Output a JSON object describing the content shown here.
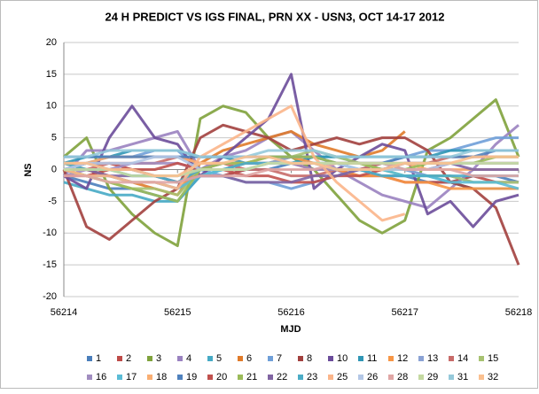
{
  "chart_data": {
    "type": "line",
    "title": "24 H PREDICT VS IGS FINAL, PRN XX - USN3, OCT 14-17 2012",
    "x_label": "MJD",
    "y_label": "NS",
    "x": [
      56214,
      56214.2,
      56214.4,
      56214.6,
      56214.8,
      56215,
      56215.2,
      56215.4,
      56215.6,
      56215.8,
      56216,
      56216.2,
      56216.4,
      56216.6,
      56216.8,
      56217,
      56217.2,
      56217.4,
      56217.6,
      56217.8,
      56218
    ],
    "xlim": [
      56214,
      56218
    ],
    "xticks": [
      56214,
      56215,
      56216,
      56217,
      56218
    ],
    "ylim": [
      -20,
      20
    ],
    "yticks": [
      -20,
      -15,
      -10,
      -5,
      0,
      5,
      10,
      15,
      20
    ],
    "grid": true,
    "series": [
      {
        "name": "1",
        "color": "#4a7ebb",
        "values": [
          -1,
          -2,
          -3,
          -3,
          -4,
          -5,
          -1,
          -1,
          0,
          0,
          1,
          1,
          1,
          0,
          -1,
          -1,
          -2,
          -2,
          -1,
          -1,
          -2
        ]
      },
      {
        "name": "2",
        "color": "#be4b48",
        "values": [
          0,
          1,
          1,
          0,
          -1,
          -2,
          -1,
          -1,
          0,
          1,
          1,
          0,
          0,
          -1,
          -1,
          -2,
          -2,
          -2,
          -1,
          -2,
          -2
        ]
      },
      {
        "name": "3",
        "color": "#7fa23c",
        "values": [
          2,
          5,
          -3,
          -7,
          -10,
          -12,
          8,
          10,
          9,
          5,
          2,
          0,
          -4,
          -8,
          -10,
          -8,
          3,
          5,
          8,
          11,
          2
        ]
      },
      {
        "name": "4",
        "color": "#9a82c0",
        "values": [
          -1,
          3,
          3,
          4,
          5,
          6,
          0,
          2,
          3,
          5,
          6,
          3,
          0,
          -2,
          -4,
          -5,
          -6,
          -3,
          0,
          4,
          7
        ]
      },
      {
        "name": "5",
        "color": "#46aac5",
        "values": [
          -2,
          -3,
          -4,
          -4,
          -5,
          -5,
          -1,
          0,
          1,
          1,
          2,
          2,
          2,
          1,
          1,
          0,
          -1,
          -2,
          -3,
          -3,
          -3
        ]
      },
      {
        "name": "6",
        "color": "#e07b2a",
        "values": [
          1,
          0,
          -1,
          -2,
          -3,
          -4,
          1,
          3,
          4,
          5,
          6,
          4,
          3,
          2,
          3,
          6,
          null,
          null,
          null,
          null,
          null
        ]
      },
      {
        "name": "7",
        "color": "#6f9fd8",
        "values": [
          0,
          1,
          2,
          2,
          3,
          3,
          0,
          -1,
          -2,
          -2,
          -3,
          -2,
          -1,
          0,
          1,
          2,
          3,
          3,
          4,
          5,
          5
        ]
      },
      {
        "name": "8",
        "color": "#a2403e",
        "values": [
          0,
          -9,
          -11,
          -8,
          -5,
          -3,
          5,
          7,
          6,
          5,
          3,
          4,
          5,
          4,
          5,
          5,
          3,
          -2,
          -3,
          -6,
          -15
        ]
      },
      {
        "name": "10",
        "color": "#6b4c9a",
        "values": [
          -1,
          -3,
          5,
          10,
          5,
          4,
          -1,
          2,
          5,
          8,
          15,
          -3,
          0,
          2,
          4,
          3,
          -7,
          -5,
          -9,
          -5,
          -4
        ]
      },
      {
        "name": "11",
        "color": "#2f96b5",
        "values": [
          1,
          2,
          2,
          3,
          3,
          3,
          2,
          2,
          1,
          1,
          1,
          2,
          2,
          2,
          2,
          2,
          2,
          3,
          3,
          3,
          3
        ]
      },
      {
        "name": "12",
        "color": "#f79646",
        "values": [
          0,
          -1,
          -1,
          -2,
          -2,
          -3,
          0,
          0,
          1,
          1,
          2,
          1,
          0,
          -1,
          -1,
          -2,
          -2,
          -3,
          -3,
          -3,
          -3
        ]
      },
      {
        "name": "13",
        "color": "#8aa2d4",
        "values": [
          1,
          1,
          0,
          0,
          -1,
          -1,
          0,
          0,
          1,
          1,
          2,
          2,
          1,
          1,
          0,
          0,
          -1,
          -1,
          -2,
          -2,
          -2
        ]
      },
      {
        "name": "14",
        "color": "#c86b69",
        "values": [
          0,
          0,
          1,
          1,
          1,
          2,
          1,
          1,
          0,
          0,
          -1,
          -1,
          0,
          0,
          1,
          1,
          1,
          2,
          2,
          2,
          2
        ]
      },
      {
        "name": "15",
        "color": "#a7c271",
        "values": [
          0,
          -1,
          -2,
          -3,
          -3,
          -4,
          0,
          1,
          1,
          2,
          2,
          3,
          2,
          1,
          0,
          -1,
          -1,
          -1,
          -2,
          -2,
          -2
        ]
      },
      {
        "name": "16",
        "color": "#a18dc0",
        "values": [
          -1,
          0,
          0,
          1,
          1,
          1,
          0,
          1,
          1,
          1,
          1,
          0,
          0,
          0,
          0,
          1,
          1,
          1,
          1,
          1,
          1
        ]
      },
      {
        "name": "17",
        "color": "#5bbcd6",
        "values": [
          0,
          -1,
          -1,
          -2,
          -2,
          -3,
          -1,
          0,
          0,
          1,
          1,
          1,
          1,
          0,
          0,
          -1,
          -1,
          -2,
          -2,
          -2,
          -3
        ]
      },
      {
        "name": "18",
        "color": "#f9ae72",
        "values": [
          1,
          1,
          2,
          2,
          2,
          2,
          1,
          1,
          1,
          2,
          2,
          2,
          1,
          1,
          1,
          1,
          0,
          0,
          0,
          0,
          0
        ]
      },
      {
        "name": "19",
        "color": "#4f81bd",
        "values": [
          2,
          2,
          2,
          2,
          2,
          2,
          2,
          2,
          2,
          2,
          2,
          2,
          1,
          1,
          1,
          2,
          2,
          2,
          2,
          3,
          3
        ]
      },
      {
        "name": "20",
        "color": "#c0504d",
        "values": [
          -1,
          -1,
          0,
          0,
          0,
          1,
          0,
          0,
          -1,
          -1,
          -2,
          -2,
          -1,
          -1,
          0,
          0,
          0,
          1,
          1,
          1,
          1
        ]
      },
      {
        "name": "21",
        "color": "#9bbb59",
        "values": [
          0,
          -1,
          -2,
          -3,
          -4,
          -5,
          0,
          1,
          1,
          2,
          2,
          2,
          1,
          1,
          0,
          0,
          1,
          1,
          1,
          2,
          2
        ]
      },
      {
        "name": "22",
        "color": "#8064a2",
        "values": [
          0,
          0,
          -1,
          -1,
          -1,
          -2,
          -1,
          -1,
          -2,
          -2,
          -2,
          -1,
          -1,
          0,
          0,
          1,
          1,
          1,
          0,
          0,
          0
        ]
      },
      {
        "name": "23",
        "color": "#4bacc6",
        "values": [
          1,
          0,
          0,
          -1,
          -1,
          -2,
          0,
          0,
          1,
          1,
          1,
          1,
          0,
          0,
          -1,
          -1,
          -1,
          -1,
          -1,
          -1,
          -1
        ]
      },
      {
        "name": "25",
        "color": "#fbb58a",
        "values": [
          0,
          -1,
          -1,
          -2,
          -2,
          -3,
          2,
          4,
          6,
          8,
          10,
          2,
          -2,
          -5,
          -8,
          -7,
          null,
          null,
          null,
          null,
          null
        ]
      },
      {
        "name": "26",
        "color": "#b3c7e6",
        "values": [
          0,
          1,
          1,
          1,
          2,
          2,
          0,
          0,
          0,
          1,
          1,
          1,
          1,
          0,
          0,
          0,
          0,
          1,
          1,
          1,
          1
        ]
      },
      {
        "name": "28",
        "color": "#e0a6a5",
        "values": [
          -1,
          -1,
          -2,
          -2,
          -2,
          -2,
          -1,
          -1,
          -1,
          0,
          0,
          0,
          1,
          1,
          1,
          0,
          0,
          0,
          -1,
          -1,
          -1
        ]
      },
      {
        "name": "29",
        "color": "#c4d9a1",
        "values": [
          0,
          0,
          0,
          -1,
          -1,
          -1,
          0,
          0,
          0,
          1,
          1,
          1,
          1,
          1,
          1,
          1,
          1,
          1,
          1,
          1,
          1
        ]
      },
      {
        "name": "31",
        "color": "#95c9da",
        "values": [
          2,
          2,
          3,
          3,
          3,
          3,
          2,
          2,
          2,
          3,
          3,
          3,
          2,
          2,
          2,
          2,
          2,
          2,
          3,
          3,
          3
        ]
      },
      {
        "name": "32",
        "color": "#fac090",
        "values": [
          1,
          1,
          0,
          0,
          -1,
          -1,
          1,
          1,
          2,
          2,
          1,
          1,
          0,
          0,
          0,
          1,
          1,
          1,
          2,
          2,
          2
        ]
      }
    ]
  }
}
